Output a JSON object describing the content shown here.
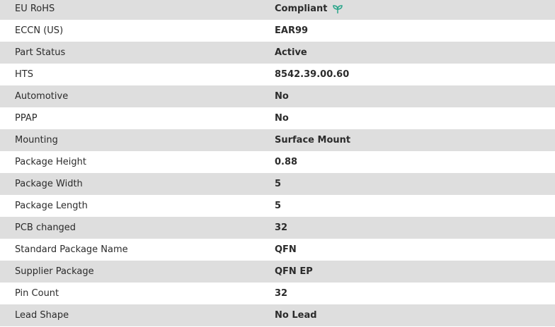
{
  "accent_color": "#2aa58a",
  "rows": [
    {
      "label": "EU RoHS",
      "value": "Compliant",
      "icon": "leaf-icon"
    },
    {
      "label": "ECCN (US)",
      "value": "EAR99"
    },
    {
      "label": "Part Status",
      "value": "Active"
    },
    {
      "label": "HTS",
      "value": "8542.39.00.60"
    },
    {
      "label": "Automotive",
      "value": "No"
    },
    {
      "label": "PPAP",
      "value": "No"
    },
    {
      "label": "Mounting",
      "value": "Surface Mount"
    },
    {
      "label": "Package Height",
      "value": "0.88"
    },
    {
      "label": "Package Width",
      "value": "5"
    },
    {
      "label": "Package Length",
      "value": "5"
    },
    {
      "label": "PCB changed",
      "value": "32"
    },
    {
      "label": "Standard Package Name",
      "value": "QFN"
    },
    {
      "label": "Supplier Package",
      "value": "QFN EP"
    },
    {
      "label": "Pin Count",
      "value": "32"
    },
    {
      "label": "Lead Shape",
      "value": "No Lead"
    }
  ]
}
